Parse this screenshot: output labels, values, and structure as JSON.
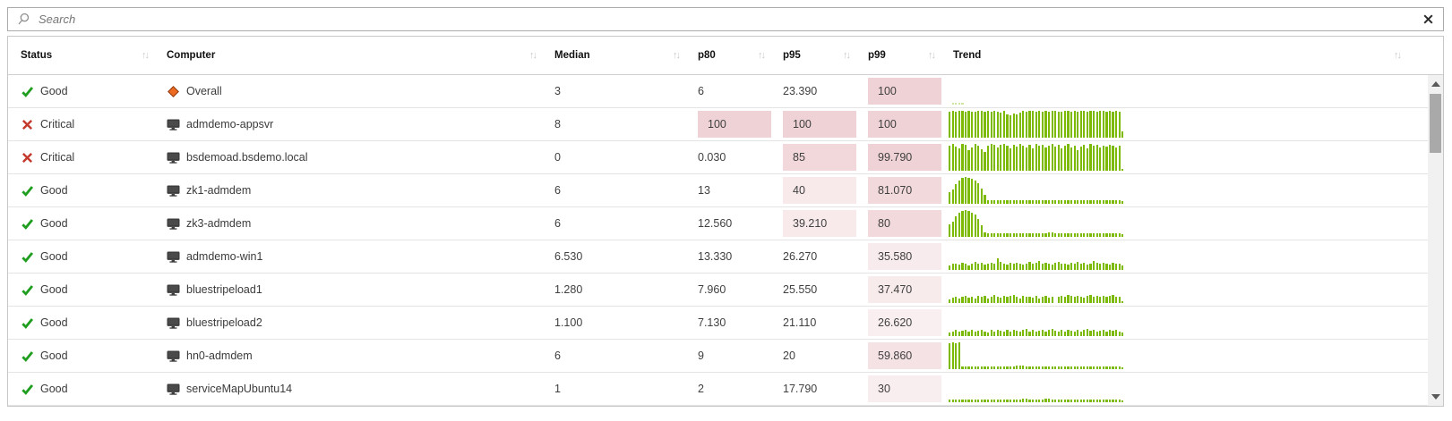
{
  "search": {
    "placeholder": "Search",
    "search_icon": "magnifier",
    "clear_icon": "x-close"
  },
  "icons": {
    "good": "green-check",
    "critical": "red-x",
    "overall": "orange-diamond",
    "computer": "monitor",
    "sort_indicator": "↑↓",
    "scroll_up": "▲",
    "scroll_down": "▼"
  },
  "colors": {
    "bar_green": "#7bba00",
    "bar_green_light": "#cde79f",
    "heat_rgb": "193,76,88",
    "good_green": "#1f9d1f",
    "critical_red": "#c4392d",
    "overall_orange": "#ed6b21"
  },
  "table": {
    "columns": [
      {
        "key": "status",
        "label": "Status",
        "sortable": true
      },
      {
        "key": "computer",
        "label": "Computer",
        "sortable": true
      },
      {
        "key": "median",
        "label": "Median",
        "sortable": true
      },
      {
        "key": "p80",
        "label": "p80",
        "sortable": true
      },
      {
        "key": "p95",
        "label": "p95",
        "sortable": true
      },
      {
        "key": "p99",
        "label": "p99",
        "sortable": true
      },
      {
        "key": "trend",
        "label": "Trend",
        "sortable": true
      }
    ],
    "rows": [
      {
        "status": "Good",
        "status_icon": "good",
        "computer": "Overall",
        "computer_icon": "overall",
        "median": "3",
        "p80": "6",
        "p95": "23.390",
        "p99": "100",
        "heat": [
          "p99"
        ],
        "trend": {
          "color": "#cde79f",
          "bars": [
            0,
            6,
            6,
            6,
            6,
            0,
            0,
            0,
            0,
            0,
            0,
            0,
            0,
            0,
            0,
            0,
            0,
            0,
            0,
            0,
            0,
            0,
            0,
            0,
            0,
            0,
            0,
            0,
            0,
            0,
            0,
            0,
            0,
            0,
            0,
            0,
            0,
            0,
            0,
            0,
            0,
            0,
            0,
            0,
            0,
            0,
            0,
            0,
            0,
            0,
            0,
            0,
            0,
            0,
            0
          ]
        }
      },
      {
        "status": "Critical",
        "status_icon": "critical",
        "computer": "admdemo-appsvr",
        "computer_icon": "computer",
        "median": "8",
        "p80": "100",
        "p95": "100",
        "p99": "100",
        "heat": [
          "p80",
          "p95",
          "p99"
        ],
        "trend": {
          "bars": [
            98,
            100,
            97,
            100,
            99,
            97,
            100,
            98,
            96,
            100,
            99,
            97,
            100,
            98,
            100,
            97,
            95,
            99,
            88,
            84,
            90,
            86,
            92,
            100,
            98,
            99,
            100,
            97,
            99,
            98,
            100,
            96,
            99,
            100,
            98,
            97,
            100,
            99,
            97,
            100,
            98,
            99,
            100,
            97,
            99,
            100,
            98,
            100,
            99,
            97,
            100,
            98,
            100,
            97,
            25
          ]
        }
      },
      {
        "status": "Critical",
        "status_icon": "critical",
        "computer": "bsdemoad.bsdemo.local",
        "computer_icon": "computer",
        "median": "0",
        "p80": "0.030",
        "p95": "85",
        "p99": "99.790",
        "heat": [
          "p95",
          "p99"
        ],
        "trend": {
          "bars": [
            95,
            100,
            90,
            85,
            100,
            97,
            76,
            88,
            100,
            95,
            80,
            70,
            92,
            100,
            96,
            88,
            97,
            100,
            93,
            85,
            97,
            90,
            100,
            95,
            88,
            97,
            82,
            100,
            92,
            97,
            88,
            95,
            100,
            90,
            97,
            85,
            93,
            100,
            88,
            95,
            78,
            90,
            97,
            85,
            100,
            92,
            97,
            88,
            95,
            90,
            97,
            93,
            88,
            95,
            8
          ]
        }
      },
      {
        "status": "Good",
        "status_icon": "good",
        "computer": "zk1-admdem",
        "computer_icon": "computer",
        "median": "6",
        "p80": "13",
        "p95": "40",
        "p99": "81.070",
        "heat": [
          "p95",
          "p99"
        ],
        "trend": {
          "bars": [
            44,
            55,
            75,
            88,
            96,
            100,
            98,
            94,
            88,
            78,
            58,
            32,
            15,
            13,
            12,
            14,
            13,
            12,
            14,
            15,
            12,
            13,
            14,
            12,
            15,
            13,
            12,
            14,
            13,
            12,
            15,
            14,
            12,
            13,
            14,
            12,
            15,
            13,
            14,
            12,
            13,
            15,
            12,
            14,
            13,
            14,
            12,
            13,
            15,
            12,
            14,
            13,
            12,
            14,
            10
          ]
        }
      },
      {
        "status": "Good",
        "status_icon": "good",
        "computer": "zk3-admdem",
        "computer_icon": "computer",
        "median": "6",
        "p80": "12.560",
        "p95": "39.210",
        "p99": "80",
        "heat": [
          "p95",
          "p99"
        ],
        "trend": {
          "bars": [
            46,
            58,
            78,
            90,
            97,
            100,
            96,
            91,
            84,
            68,
            44,
            16,
            13,
            12,
            14,
            12,
            13,
            15,
            12,
            14,
            12,
            13,
            14,
            12,
            15,
            13,
            12,
            14,
            13,
            12,
            15,
            17,
            16,
            14,
            12,
            13,
            14,
            12,
            13,
            15,
            12,
            14,
            13,
            12,
            14,
            13,
            15,
            12,
            13,
            14,
            12,
            15,
            13,
            12,
            10
          ]
        }
      },
      {
        "status": "Good",
        "status_icon": "good",
        "computer": "admdemo-win1",
        "computer_icon": "computer",
        "median": "6.530",
        "p80": "13.330",
        "p95": "26.270",
        "p99": "35.580",
        "heat": [
          "p99"
        ],
        "trend": {
          "bars": [
            18,
            22,
            25,
            20,
            28,
            22,
            17,
            25,
            30,
            22,
            26,
            20,
            24,
            28,
            22,
            45,
            30,
            24,
            20,
            26,
            22,
            28,
            24,
            20,
            25,
            30,
            22,
            26,
            35,
            22,
            28,
            24,
            20,
            26,
            30,
            22,
            25,
            20,
            28,
            24,
            30,
            22,
            26,
            20,
            24,
            35,
            28,
            22,
            26,
            24,
            20,
            28,
            22,
            25,
            16
          ]
        }
      },
      {
        "status": "Good",
        "status_icon": "good",
        "computer": "bluestripeload1",
        "computer_icon": "computer",
        "median": "1.280",
        "p80": "7.960",
        "p95": "25.550",
        "p99": "37.470",
        "heat": [
          "p99"
        ],
        "trend": {
          "bars": [
            15,
            20,
            25,
            18,
            22,
            28,
            20,
            24,
            17,
            26,
            22,
            28,
            18,
            24,
            30,
            25,
            20,
            28,
            22,
            26,
            30,
            24,
            18,
            28,
            22,
            25,
            20,
            26,
            18,
            24,
            28,
            20,
            25,
            0,
            22,
            28,
            24,
            30,
            26,
            22,
            28,
            25,
            20,
            26,
            30,
            24,
            28,
            22,
            26,
            24,
            28,
            30,
            25,
            22,
            8
          ]
        }
      },
      {
        "status": "Good",
        "status_icon": "good",
        "computer": "bluestripeload2",
        "computer_icon": "computer",
        "median": "1.100",
        "p80": "7.130",
        "p95": "21.110",
        "p99": "26.620",
        "heat": [
          "p99"
        ],
        "trend": {
          "bars": [
            14,
            18,
            22,
            16,
            20,
            24,
            18,
            22,
            16,
            20,
            24,
            18,
            14,
            22,
            18,
            24,
            20,
            16,
            22,
            18,
            24,
            20,
            16,
            22,
            26,
            18,
            22,
            16,
            20,
            24,
            18,
            22,
            26,
            20,
            16,
            22,
            18,
            24,
            20,
            16,
            22,
            18,
            24,
            26,
            20,
            22,
            16,
            20,
            24,
            18,
            22,
            20,
            24,
            18,
            12
          ]
        }
      },
      {
        "status": "Good",
        "status_icon": "good",
        "computer": "hn0-admdem",
        "computer_icon": "computer",
        "median": "6",
        "p80": "9",
        "p95": "20",
        "p99": "59.860",
        "heat": [
          "p99"
        ],
        "trend": {
          "bars": [
            96,
            100,
            98,
            100,
            10,
            9,
            10,
            9,
            10,
            9,
            11,
            9,
            10,
            9,
            10,
            9,
            10,
            9,
            10,
            11,
            9,
            12,
            14,
            12,
            10,
            9,
            10,
            9,
            10,
            9,
            10,
            9,
            11,
            9,
            10,
            9,
            10,
            9,
            10,
            9,
            10,
            11,
            9,
            10,
            9,
            10,
            9,
            10,
            9,
            11,
            9,
            10,
            9,
            10,
            8
          ]
        }
      },
      {
        "status": "Good",
        "status_icon": "good",
        "computer": "serviceMapUbuntu14",
        "computer_icon": "computer",
        "median": "1",
        "p80": "2",
        "p95": "17.790",
        "p99": "30",
        "heat": [
          "p99"
        ],
        "trend": {
          "bars": [
            9,
            10,
            9,
            10,
            9,
            10,
            9,
            10,
            9,
            10,
            9,
            10,
            9,
            10,
            9,
            10,
            9,
            10,
            9,
            10,
            9,
            10,
            9,
            14,
            12,
            10,
            9,
            10,
            9,
            10,
            12,
            14,
            10,
            9,
            10,
            9,
            10,
            9,
            10,
            9,
            10,
            9,
            10,
            9,
            10,
            9,
            10,
            9,
            10,
            9,
            10,
            9,
            10,
            9,
            6
          ]
        }
      }
    ]
  }
}
